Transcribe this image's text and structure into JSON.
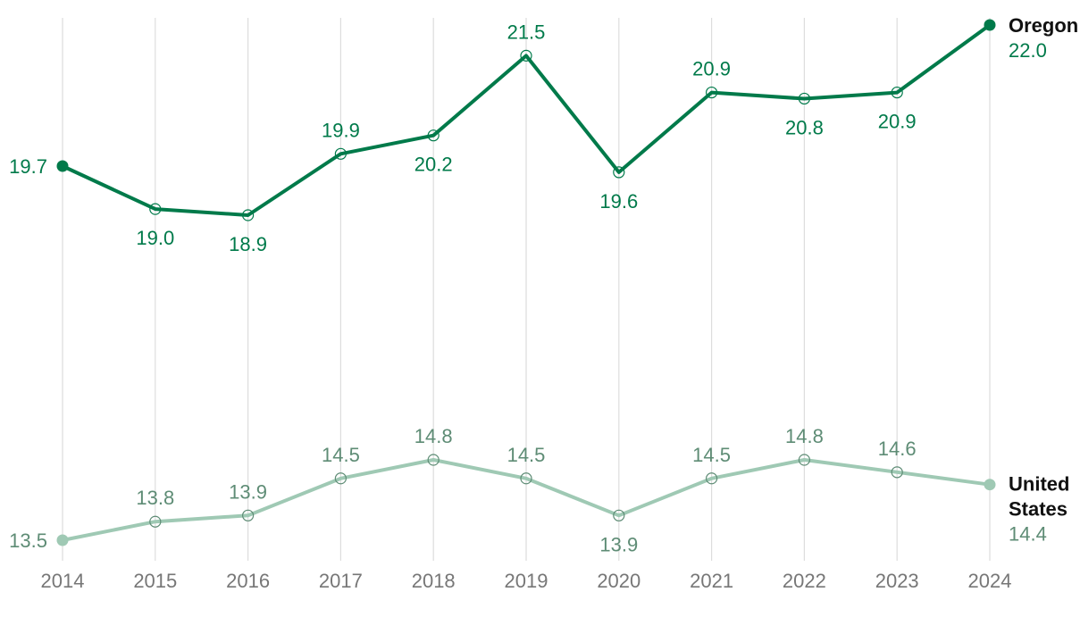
{
  "chart_data": {
    "type": "line",
    "x": [
      "2014",
      "2015",
      "2016",
      "2017",
      "2018",
      "2019",
      "2020",
      "2021",
      "2022",
      "2023",
      "2024"
    ],
    "series": [
      {
        "name": "Oregon",
        "values": [
          19.7,
          19.0,
          18.9,
          19.9,
          20.2,
          21.5,
          19.6,
          20.9,
          20.8,
          20.9,
          22.0
        ],
        "labels": [
          "19.7",
          "19.0",
          "18.9",
          "19.9",
          "20.2",
          "21.5",
          "19.6",
          "20.9",
          "20.8",
          "20.9",
          "22.0"
        ],
        "color": "#007a4a",
        "label_color": "#007a4a",
        "line_width": 4,
        "end_name_lines": [
          "Oregon"
        ]
      },
      {
        "name": "United States",
        "values": [
          13.5,
          13.8,
          13.9,
          14.5,
          14.8,
          14.5,
          13.9,
          14.5,
          14.8,
          14.6,
          14.4
        ],
        "labels": [
          "13.5",
          "13.8",
          "13.9",
          "14.5",
          "14.8",
          "14.5",
          "13.9",
          "14.5",
          "14.8",
          "14.6",
          "14.4"
        ],
        "color": "#9fc9b4",
        "label_color": "#5e8c75",
        "line_width": 4,
        "end_name_lines": [
          "United",
          "States"
        ]
      }
    ],
    "grid": "vertical",
    "legend": "direct labels at line ends",
    "title": "",
    "xlabel": "",
    "ylabel": ""
  }
}
